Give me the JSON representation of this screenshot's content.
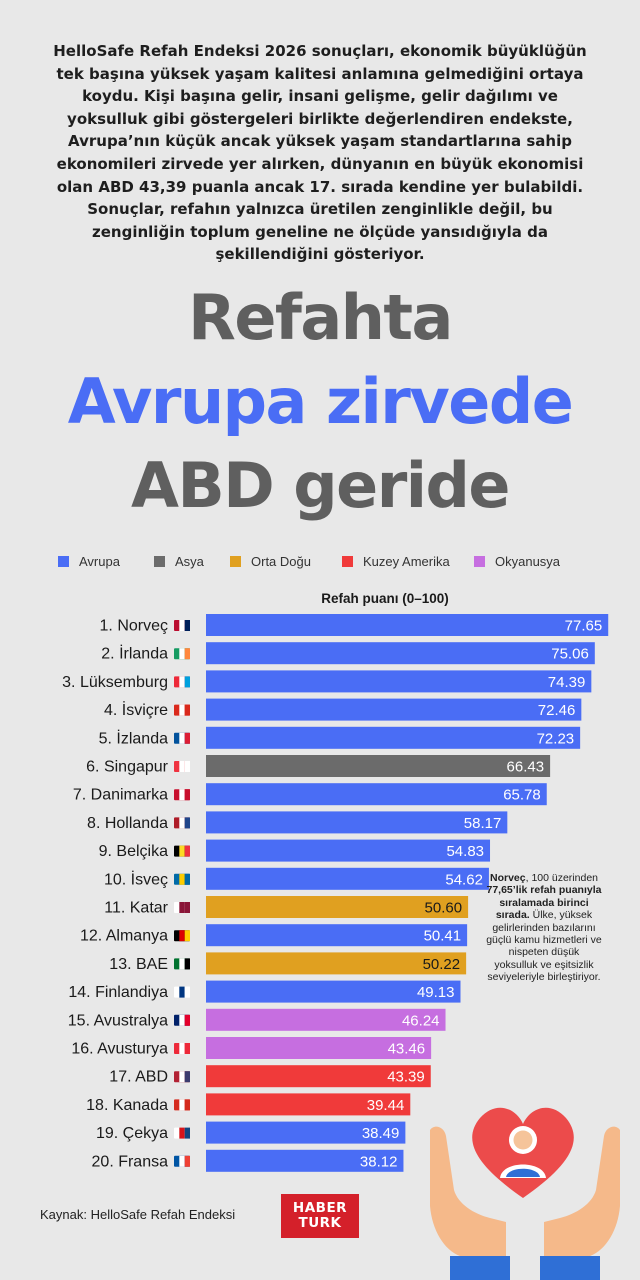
{
  "intro_text": "HelloSafe Refah Endeksi 2026 sonuçları, ekonomik büyüklüğün tek başına yüksek yaşam kalitesi anlamına gelmediğini ortaya koydu. Kişi başına gelir, insani gelişme, gelir dağılımı ve yoksulluk gibi göstergeleri birlikte değerlendiren endekste, Avrupa’nın küçük ancak yüksek yaşam standartlarına sahip ekonomileri zirvede yer alırken, dünyanın en büyük ekonomisi olan ABD 43,39 puanla ancak 17. sırada kendine yer bulabildi. Sonuçlar, refahın yalnızca üretilen zenginlikle değil, bu zenginliğin toplum geneline ne ölçüde yansıdığıyla da şekillendiğini gösteriyor.",
  "headline": {
    "line1": "Refahta",
    "line2": "Avrupa zirvede",
    "line3": "ABD geride"
  },
  "colors": {
    "Avrupa": "#4a6df5",
    "Asya": "#6b6b6b",
    "Orta Doğu": "#e0a020",
    "Kuzey Amerika": "#f03a3a",
    "Okyanusya": "#c66ee0",
    "background": "#e8e8e8"
  },
  "legend": [
    {
      "label": "Avrupa",
      "color": "#4a6df5"
    },
    {
      "label": "Asya",
      "color": "#6b6b6b"
    },
    {
      "label": "Orta Doğu",
      "color": "#e0a020"
    },
    {
      "label": "Kuzey Amerika",
      "color": "#f03a3a"
    },
    {
      "label": "Okyanusya",
      "color": "#c66ee0"
    }
  ],
  "chart_data": {
    "type": "bar",
    "orientation": "horizontal",
    "title": "Refah puanı (0–100)",
    "xlim": [
      0,
      100
    ],
    "categories": [
      "1. Norveç",
      "2. İrlanda",
      "3. Lüksemburg",
      "4. İsviçre",
      "5. İzlanda",
      "6. Singapur",
      "7. Danimarka",
      "8. Hollanda",
      "9. Belçika",
      "10. İsveç",
      "11. Katar",
      "12. Almanya",
      "13. BAE",
      "14. Finlandiya",
      "15. Avustralya",
      "16. Avusturya",
      "17. ABD",
      "18. Kanada",
      "19. Çekya",
      "20. Fransa"
    ],
    "values": [
      77.65,
      75.06,
      74.39,
      72.46,
      72.23,
      66.43,
      65.78,
      58.17,
      54.83,
      54.62,
      50.6,
      50.41,
      50.22,
      49.13,
      46.24,
      43.46,
      43.39,
      39.44,
      38.49,
      38.12
    ],
    "value_labels": [
      "77.65",
      "75.06",
      "74.39",
      "72.46",
      "72.23",
      "66.43",
      "65.78",
      "58.17",
      "54.83",
      "54.62",
      "50.60",
      "50.41",
      "50.22",
      "49.13",
      "46.24",
      "43.46",
      "43.39",
      "39.44",
      "38.49",
      "38.12"
    ],
    "regions": [
      "Avrupa",
      "Avrupa",
      "Avrupa",
      "Avrupa",
      "Avrupa",
      "Asya",
      "Avrupa",
      "Avrupa",
      "Avrupa",
      "Avrupa",
      "Orta Doğu",
      "Avrupa",
      "Orta Doğu",
      "Avrupa",
      "Okyanusya",
      "Okyanusya",
      "Kuzey Amerika",
      "Kuzey Amerika",
      "Avrupa",
      "Avrupa"
    ],
    "flags": [
      "norway-flag",
      "ireland-flag",
      "luxembourg-flag",
      "switzerland-flag",
      "iceland-flag",
      "singapore-flag",
      "denmark-flag",
      "netherlands-flag",
      "belgium-flag",
      "sweden-flag",
      "qatar-flag",
      "germany-flag",
      "uae-flag",
      "finland-flag",
      "australia-flag",
      "austria-flag",
      "usa-flag",
      "canada-flag",
      "czechia-flag",
      "france-flag"
    ],
    "grid": false,
    "legend_position": "top"
  },
  "note": {
    "bold": "Norveç",
    "part1": ", 100 üzerinden ",
    "bold2": "77,65’lik refah puanıyla sıralamada birinci sırada.",
    "part2": " Ülke, yüksek gelirlerinden bazılarını güçlü kamu hizmetleri ve nispeten düşük yoksulluk ve eşitsizlik seviyeleriyle birleştiriyor."
  },
  "source": "Kaynak: HelloSafe Refah Endeksi",
  "logo": {
    "line1": "HABER",
    "line2": "TURK"
  },
  "illustration": "hands-holding-heart-icon"
}
